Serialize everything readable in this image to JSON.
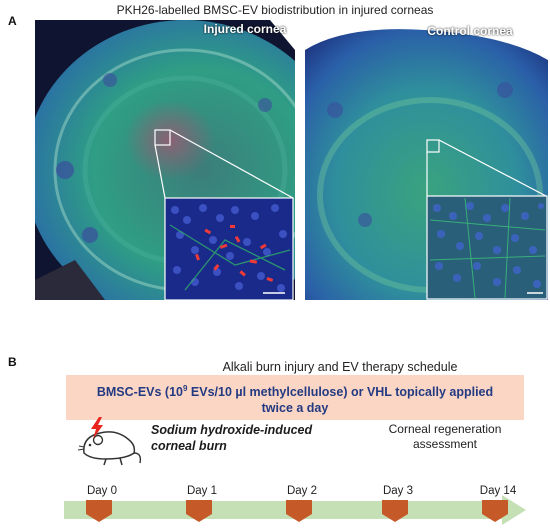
{
  "panel_a": {
    "label": "A",
    "title": "PKH26-labelled BMSC-EV biodistribution in injured corneas",
    "left_image": {
      "caption": "Injured cornea"
    },
    "right_image": {
      "caption": "Control cornea"
    }
  },
  "panel_b": {
    "label": "B",
    "title": "Alkali burn injury and EV therapy schedule",
    "treatment_prefix": "BMSC-EVs (10",
    "treatment_sup": "9",
    "treatment_suffix": " EVs/10 µl methylcellulose) or VHL topically applied",
    "treatment_line2": "twice a day",
    "burn_line1": "Sodium hydroxide-induced",
    "burn_line2": "corneal burn",
    "assessment_line1": "Corneal regeneration",
    "assessment_line2": "assessment",
    "timeline_days": [
      "Day 0",
      "Day 1",
      "Day 2",
      "Day 3",
      "Day 14"
    ],
    "colors": {
      "banner": "#fbd6c4",
      "banner_text": "#233a82",
      "arrow": "#c5e0b4",
      "marker": "#c55a28",
      "bolt": "#e8251f"
    },
    "icons": [
      "mouse-icon",
      "lightning-bolt-icon"
    ]
  }
}
